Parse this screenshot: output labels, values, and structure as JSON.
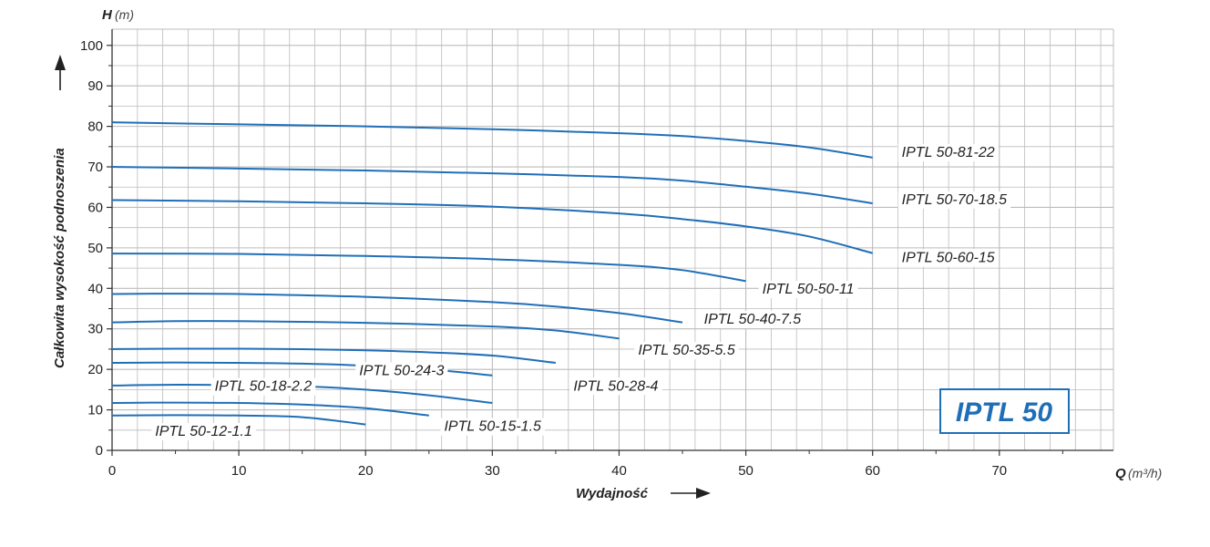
{
  "chart_data": {
    "type": "line",
    "x_symbol": "Q",
    "x_unit": "(m³/h)",
    "y_symbol": "H",
    "y_unit": "(m)",
    "xlabel": "Wydajność",
    "ylabel": "Całkowita wysokość podnoszenia",
    "xlim": [
      0,
      79
    ],
    "ylim": [
      0,
      104
    ],
    "x_ticks": [
      0,
      10,
      20,
      30,
      40,
      50,
      60,
      70
    ],
    "y_ticks": [
      0,
      10,
      20,
      30,
      40,
      50,
      60,
      70,
      80,
      90,
      100
    ],
    "grid": true,
    "badge": "IPTL 50",
    "colors": {
      "curve": "#1f6fb8",
      "grid": "#bcbcbc",
      "badge": "#1f6fb8"
    },
    "series": [
      {
        "name": "IPTL 50-81-22",
        "x": [
          0,
          10,
          20,
          30,
          40,
          45,
          50,
          55,
          60
        ],
        "y": [
          81,
          80.5,
          80,
          79.3,
          78.3,
          77.6,
          76.4,
          74.8,
          72.3
        ]
      },
      {
        "name": "IPTL 50-70-18.5",
        "x": [
          0,
          10,
          20,
          30,
          40,
          45,
          50,
          55,
          60
        ],
        "y": [
          70,
          69.6,
          69.1,
          68.4,
          67.5,
          66.6,
          65.1,
          63.4,
          61
        ]
      },
      {
        "name": "IPTL 50-60-15",
        "x": [
          0,
          10,
          20,
          30,
          40,
          45,
          50,
          55,
          60
        ],
        "y": [
          61.8,
          61.5,
          61,
          60.2,
          58.5,
          57.1,
          55.3,
          52.8,
          48.7
        ]
      },
      {
        "name": "IPTL 50-50-11",
        "x": [
          0,
          10,
          20,
          30,
          40,
          45,
          50
        ],
        "y": [
          48.6,
          48.5,
          48,
          47.2,
          45.8,
          44.5,
          41.8
        ]
      },
      {
        "name": "IPTL 50-40-7.5",
        "x": [
          0,
          5,
          10,
          20,
          30,
          35,
          40,
          45
        ],
        "y": [
          38.6,
          38.7,
          38.6,
          37.9,
          36.6,
          35.5,
          33.9,
          31.6
        ]
      },
      {
        "name": "IPTL 50-35-5.5",
        "x": [
          0,
          5,
          10,
          20,
          30,
          35,
          40
        ],
        "y": [
          31.6,
          31.9,
          31.9,
          31.5,
          30.6,
          29.6,
          27.6
        ]
      },
      {
        "name": "IPTL 50-28-4",
        "x": [
          0,
          5,
          10,
          15,
          20,
          25,
          30,
          35
        ],
        "y": [
          25,
          25.1,
          25.1,
          25,
          24.7,
          24.2,
          23.4,
          21.6
        ]
      },
      {
        "name": "IPTL 50-24-3",
        "x": [
          0,
          5,
          10,
          15,
          20,
          25,
          30
        ],
        "y": [
          21.6,
          21.7,
          21.6,
          21.4,
          20.9,
          20,
          18.5
        ]
      },
      {
        "name": "IPTL 50-18-2.2",
        "x": [
          0,
          5,
          10,
          15,
          20,
          25,
          30
        ],
        "y": [
          16,
          16.2,
          16.1,
          15.8,
          15,
          13.6,
          11.7
        ]
      },
      {
        "name": "IPTL 50-15-1.5",
        "x": [
          0,
          5,
          10,
          15,
          20,
          25
        ],
        "y": [
          11.7,
          11.8,
          11.7,
          11.3,
          10.4,
          8.6
        ]
      },
      {
        "name": "IPTL 50-12-1.1",
        "x": [
          0,
          5,
          10,
          15,
          20
        ],
        "y": [
          8.6,
          8.7,
          8.6,
          8.2,
          6.4
        ]
      }
    ],
    "labels": [
      {
        "text": "IPTL 50-81-22",
        "x": 62.3,
        "y": 72.5
      },
      {
        "text": "IPTL 50-70-18.5",
        "x": 62.3,
        "y": 60.8
      },
      {
        "text": "IPTL 50-60-15",
        "x": 62.3,
        "y": 46.5
      },
      {
        "text": "IPTL 50-50-11",
        "x": 51.3,
        "y": 38.7
      },
      {
        "text": "IPTL 50-40-7.5",
        "x": 46.7,
        "y": 31.3
      },
      {
        "text": "IPTL 50-35-5.5",
        "x": 41.5,
        "y": 23.6
      },
      {
        "text": "IPTL 50-28-4",
        "x": 36.4,
        "y": 14.8
      },
      {
        "text": "IPTL 50-24-3",
        "x": 19.5,
        "y": 18.6
      },
      {
        "text": "IPTL 50-18-2.2",
        "x": 8.1,
        "y": 14.7
      },
      {
        "text": "IPTL 50-15-1.5",
        "x": 26.2,
        "y": 4.8
      },
      {
        "text": "IPTL 50-12-1.1",
        "x": 3.4,
        "y": 3.6
      }
    ]
  }
}
